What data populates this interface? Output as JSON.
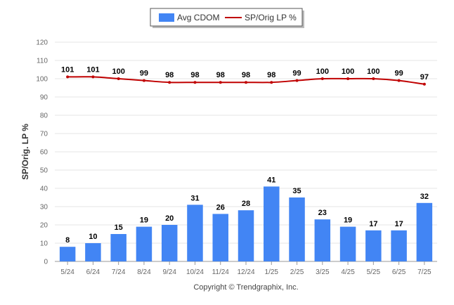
{
  "chart_data": {
    "type": "bar",
    "categories": [
      "5/24",
      "6/24",
      "7/24",
      "8/24",
      "9/24",
      "10/24",
      "11/24",
      "12/24",
      "1/25",
      "2/25",
      "3/25",
      "4/25",
      "5/25",
      "6/25",
      "7/25"
    ],
    "series": [
      {
        "name": "Avg CDOM",
        "type": "bar",
        "color": "#4285f4",
        "values": [
          8,
          10,
          15,
          19,
          20,
          31,
          26,
          28,
          41,
          35,
          23,
          19,
          17,
          17,
          32
        ]
      },
      {
        "name": "SP/Orig LP %",
        "type": "line",
        "color": "#c00000",
        "values": [
          101,
          101,
          100,
          99,
          98,
          98,
          98,
          98,
          98,
          99,
          100,
          100,
          100,
          99,
          97
        ]
      }
    ],
    "ylabel": "SP/Orig. LP %",
    "ylim": [
      0,
      120
    ],
    "yticks": [
      0,
      10,
      20,
      30,
      40,
      50,
      60,
      70,
      80,
      90,
      100,
      110,
      120
    ],
    "grid": true,
    "legend_position": "top-center"
  },
  "footer": "Copyright © Trendgraphix, Inc."
}
